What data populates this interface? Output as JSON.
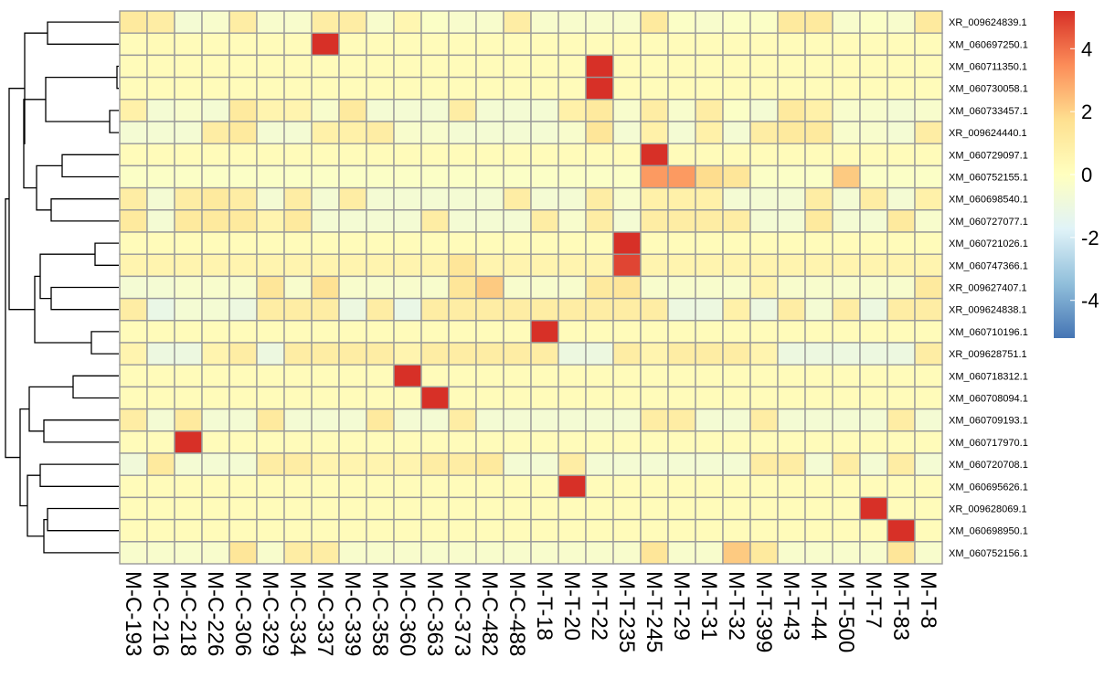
{
  "chart_data": {
    "type": "heatmap",
    "title": "",
    "xlabel": "",
    "ylabel": "",
    "columns": [
      "M-C-193",
      "M-C-216",
      "M-C-218",
      "M-C-226",
      "M-C-306",
      "M-C-329",
      "M-C-334",
      "M-C-337",
      "M-C-339",
      "M-C-358",
      "M-C-360",
      "M-C-363",
      "M-C-373",
      "M-C-482",
      "M-C-488",
      "M-T-18",
      "M-T-20",
      "M-T-22",
      "M-T-235",
      "M-T-245",
      "M-T-29",
      "M-T-31",
      "M-T-32",
      "M-T-399",
      "M-T-43",
      "M-T-44",
      "M-T-500",
      "M-T-7",
      "M-T-83",
      "M-T-8"
    ],
    "rows": [
      "XR_009624839.1",
      "XM_060697250.1",
      "XM_060711350.1",
      "XM_060730058.1",
      "XM_060733457.1",
      "XR_009624440.1",
      "XM_060729097.1",
      "XM_060752155.1",
      "XM_060698540.1",
      "XM_060727077.1",
      "XM_060721026.1",
      "XM_060747366.1",
      "XR_009627407.1",
      "XR_009624838.1",
      "XM_060710196.1",
      "XR_009628751.1",
      "XM_060718312.1",
      "XM_060708094.1",
      "XM_060709193.1",
      "XM_060717970.1",
      "XM_060720708.1",
      "XM_060695626.1",
      "XR_009628069.1",
      "XM_060698950.1",
      "XM_060752156.1"
    ],
    "values": [
      [
        1.2,
        1.0,
        -0.6,
        -0.4,
        1.0,
        -0.4,
        -0.4,
        1.0,
        1.0,
        -0.4,
        0.5,
        -0.2,
        -0.4,
        -0.4,
        1.0,
        -0.4,
        -0.4,
        -0.4,
        -0.4,
        1.2,
        -0.2,
        -0.4,
        -0.2,
        -0.2,
        1.2,
        1.2,
        -0.4,
        -0.2,
        -0.4,
        1.2
      ],
      [
        0.2,
        0.3,
        0.2,
        0.2,
        0.2,
        0.2,
        0.2,
        5.2,
        0.2,
        0.2,
        0.2,
        0.2,
        0.2,
        0.2,
        0.2,
        0.2,
        0.2,
        0.2,
        0.2,
        0.2,
        0.2,
        0.2,
        0.2,
        0.2,
        0.2,
        0.2,
        0.2,
        0.2,
        0.2,
        0.2
      ],
      [
        0.2,
        0.2,
        0.2,
        0.2,
        0.2,
        0.2,
        0.2,
        0.2,
        0.2,
        0.2,
        0.2,
        0.2,
        0.2,
        0.2,
        0.2,
        0.2,
        0.2,
        5.2,
        0.2,
        0.2,
        0.2,
        0.2,
        0.2,
        0.2,
        0.2,
        0.2,
        0.2,
        0.2,
        0.2,
        0.2
      ],
      [
        0.2,
        0.2,
        0.2,
        0.2,
        0.2,
        0.2,
        0.2,
        0.2,
        0.2,
        0.2,
        0.2,
        0.2,
        0.2,
        0.2,
        0.2,
        0.2,
        0.2,
        5.2,
        0.2,
        0.2,
        0.2,
        0.2,
        0.2,
        0.2,
        0.2,
        0.2,
        0.2,
        0.2,
        0.2,
        0.2
      ],
      [
        0.8,
        -0.6,
        -0.4,
        -0.6,
        1.2,
        0.6,
        0.6,
        -0.4,
        1.2,
        -0.6,
        -0.6,
        -0.6,
        1.0,
        -0.6,
        -0.6,
        -0.6,
        0.8,
        1.2,
        -0.4,
        1.0,
        -0.4,
        1.0,
        -0.2,
        -0.6,
        1.2,
        0.8,
        -0.4,
        -0.4,
        -0.6,
        -0.4
      ],
      [
        -0.6,
        -0.6,
        -0.6,
        1.0,
        1.2,
        -0.6,
        -0.6,
        0.8,
        0.8,
        1.0,
        -0.4,
        -0.4,
        -0.6,
        -0.6,
        -0.6,
        -0.6,
        -0.4,
        1.4,
        -0.6,
        0.8,
        -0.6,
        0.8,
        -0.6,
        1.0,
        1.2,
        1.2,
        -0.4,
        -0.4,
        -0.6,
        1.0
      ],
      [
        0.2,
        0.2,
        0.2,
        0.2,
        0.2,
        0.2,
        0.2,
        0.2,
        0.2,
        0.2,
        0.2,
        0.2,
        0.2,
        0.2,
        0.2,
        0.2,
        0.2,
        0.2,
        0.2,
        5.2,
        0.2,
        0.2,
        0.2,
        0.2,
        0.2,
        0.2,
        0.2,
        0.2,
        0.2,
        0.2
      ],
      [
        -0.2,
        -0.2,
        -0.2,
        -0.2,
        -0.2,
        -0.2,
        -0.2,
        -0.2,
        -0.2,
        -0.2,
        -0.2,
        -0.2,
        -0.2,
        -0.2,
        -0.2,
        -0.2,
        -0.2,
        -0.2,
        -0.2,
        3.2,
        3.2,
        1.8,
        1.4,
        -0.2,
        -0.2,
        -0.2,
        2.2,
        -0.2,
        -0.2,
        -0.2
      ],
      [
        1.0,
        -0.6,
        1.0,
        1.2,
        1.0,
        -0.6,
        1.0,
        -0.6,
        1.0,
        -0.6,
        -0.6,
        -0.6,
        -0.6,
        -0.6,
        1.0,
        -0.6,
        -0.6,
        1.0,
        -0.4,
        0.8,
        0.8,
        0.8,
        -0.6,
        -0.6,
        -0.6,
        1.0,
        -0.6,
        1.0,
        -0.6,
        0.8
      ],
      [
        1.2,
        -0.6,
        1.2,
        1.2,
        1.2,
        0.6,
        1.2,
        -0.6,
        -0.6,
        -0.6,
        -0.6,
        1.0,
        -0.6,
        -0.6,
        -0.6,
        1.0,
        -0.4,
        1.0,
        -0.6,
        1.0,
        1.0,
        1.0,
        1.0,
        -0.6,
        -0.6,
        1.2,
        -0.6,
        -0.6,
        1.2,
        -0.4
      ],
      [
        0.2,
        0.2,
        0.2,
        0.2,
        0.2,
        0.2,
        0.2,
        0.2,
        0.2,
        0.2,
        0.2,
        0.2,
        0.2,
        0.2,
        0.2,
        0.2,
        0.2,
        0.2,
        5.2,
        0.2,
        0.2,
        0.2,
        0.2,
        0.2,
        0.2,
        0.2,
        0.2,
        0.2,
        0.2,
        0.2
      ],
      [
        0.6,
        0.6,
        0.6,
        0.6,
        0.6,
        0.6,
        0.6,
        0.6,
        0.6,
        0.6,
        0.6,
        0.6,
        1.4,
        0.6,
        0.6,
        0.6,
        0.6,
        0.6,
        4.8,
        0.6,
        0.6,
        0.6,
        0.6,
        0.6,
        0.6,
        0.6,
        0.6,
        0.6,
        0.6,
        0.6
      ],
      [
        -0.6,
        -0.6,
        -0.4,
        -0.4,
        -0.4,
        1.4,
        -0.4,
        1.6,
        -0.4,
        -0.4,
        -0.4,
        -0.4,
        1.4,
        2.2,
        -0.4,
        -0.4,
        -0.4,
        1.2,
        1.4,
        -0.4,
        -0.4,
        -0.4,
        -0.4,
        0.6,
        -0.4,
        -0.4,
        -0.4,
        -0.4,
        -0.4,
        1.2
      ],
      [
        1.0,
        -1.2,
        -0.6,
        -0.6,
        -1.0,
        1.0,
        1.0,
        1.0,
        -1.0,
        1.0,
        -1.2,
        1.0,
        1.0,
        1.0,
        1.0,
        1.0,
        1.0,
        1.0,
        1.0,
        1.0,
        -1.0,
        -1.0,
        0.8,
        -1.0,
        1.0,
        -0.6,
        1.0,
        -1.0,
        1.0,
        1.0
      ],
      [
        0.2,
        0.2,
        0.2,
        0.2,
        0.2,
        0.2,
        0.2,
        0.2,
        0.2,
        0.2,
        0.2,
        0.2,
        0.2,
        0.2,
        0.2,
        5.2,
        0.2,
        0.2,
        0.2,
        0.2,
        0.2,
        0.2,
        0.2,
        0.2,
        0.2,
        0.2,
        0.2,
        0.2,
        0.2,
        0.2
      ],
      [
        0.6,
        -1.0,
        -1.0,
        0.6,
        1.0,
        -1.0,
        1.0,
        1.0,
        1.0,
        1.0,
        0.6,
        1.0,
        1.0,
        1.0,
        1.0,
        1.0,
        -1.0,
        -1.0,
        1.0,
        0.6,
        1.0,
        1.0,
        1.0,
        0.6,
        -1.0,
        -1.0,
        -1.0,
        -1.0,
        -1.0,
        1.0
      ],
      [
        0.2,
        0.2,
        0.2,
        0.2,
        0.2,
        0.2,
        0.2,
        0.2,
        0.2,
        0.2,
        5.2,
        0.2,
        0.2,
        0.2,
        0.2,
        0.2,
        0.2,
        0.2,
        0.2,
        0.2,
        0.2,
        0.2,
        0.2,
        0.2,
        0.2,
        0.2,
        0.2,
        0.2,
        0.2,
        0.2
      ],
      [
        0.2,
        0.2,
        0.2,
        0.2,
        0.2,
        0.2,
        0.2,
        0.2,
        0.2,
        0.2,
        0.2,
        5.2,
        0.2,
        0.2,
        0.2,
        0.2,
        0.2,
        0.2,
        0.2,
        0.2,
        0.2,
        0.2,
        0.2,
        0.2,
        0.2,
        0.2,
        0.2,
        0.2,
        0.2,
        0.2
      ],
      [
        1.0,
        -0.6,
        1.2,
        -0.6,
        -0.6,
        1.2,
        -0.6,
        -0.6,
        -0.6,
        1.2,
        -0.6,
        -0.6,
        1.0,
        -0.6,
        -0.6,
        -0.6,
        -0.6,
        -0.6,
        -0.6,
        1.0,
        1.0,
        -0.6,
        -0.6,
        1.0,
        -0.6,
        -0.6,
        -0.6,
        -0.6,
        1.0,
        -0.6
      ],
      [
        0.2,
        0.2,
        5.2,
        0.2,
        0.2,
        0.2,
        0.2,
        0.2,
        0.2,
        0.2,
        0.2,
        0.2,
        0.2,
        0.2,
        0.2,
        0.2,
        0.2,
        0.2,
        0.2,
        0.2,
        0.2,
        0.2,
        0.2,
        0.2,
        0.2,
        0.2,
        0.2,
        0.2,
        0.2,
        0.2
      ],
      [
        -0.8,
        1.2,
        -0.6,
        -0.6,
        -0.6,
        1.0,
        1.0,
        0.6,
        0.6,
        0.6,
        0.6,
        1.0,
        1.0,
        1.2,
        -0.6,
        -0.6,
        1.0,
        -0.6,
        -0.6,
        -0.6,
        -0.6,
        -0.6,
        -0.6,
        1.0,
        1.0,
        -0.6,
        1.0,
        -0.6,
        1.0,
        -0.6
      ],
      [
        0.2,
        0.2,
        0.2,
        0.2,
        0.2,
        0.2,
        0.2,
        0.2,
        0.2,
        0.2,
        0.2,
        0.2,
        0.2,
        0.2,
        0.2,
        0.2,
        5.2,
        0.2,
        0.2,
        0.2,
        0.2,
        0.2,
        0.2,
        0.2,
        0.2,
        0.2,
        0.2,
        0.2,
        0.2,
        0.2
      ],
      [
        0.2,
        0.2,
        0.2,
        0.2,
        0.2,
        0.2,
        0.2,
        0.2,
        0.2,
        0.2,
        0.2,
        0.2,
        0.2,
        0.2,
        0.2,
        0.2,
        0.2,
        0.2,
        0.2,
        0.2,
        0.2,
        0.2,
        0.2,
        0.2,
        0.2,
        0.2,
        0.2,
        5.2,
        0.2,
        0.2
      ],
      [
        0.2,
        0.2,
        0.2,
        0.2,
        0.2,
        0.2,
        0.2,
        0.2,
        0.2,
        0.2,
        0.2,
        0.2,
        0.2,
        0.2,
        0.2,
        0.2,
        0.2,
        0.2,
        0.2,
        0.2,
        0.2,
        0.2,
        0.2,
        0.2,
        0.2,
        0.2,
        0.2,
        0.2,
        5.2,
        0.2
      ],
      [
        -0.4,
        -0.4,
        -0.4,
        -0.4,
        1.4,
        -0.4,
        1.0,
        1.0,
        -0.4,
        -0.4,
        -0.4,
        -0.4,
        -0.4,
        -0.4,
        -0.4,
        -0.4,
        -0.4,
        -0.4,
        -0.4,
        1.4,
        -0.4,
        -0.4,
        2.2,
        1.2,
        -0.4,
        -0.4,
        -0.4,
        -0.4,
        1.4,
        -0.4
      ]
    ],
    "color_scale": {
      "min": -5.2,
      "max": 5.2,
      "stops": [
        "#4575B4",
        "#91BFDB",
        "#E0F3F8",
        "#FFFFBF",
        "#FEE090",
        "#FC8D59",
        "#D73027"
      ],
      "ticks": [
        4,
        2,
        0,
        -2,
        -4
      ]
    },
    "row_dendrogram": "visible"
  }
}
